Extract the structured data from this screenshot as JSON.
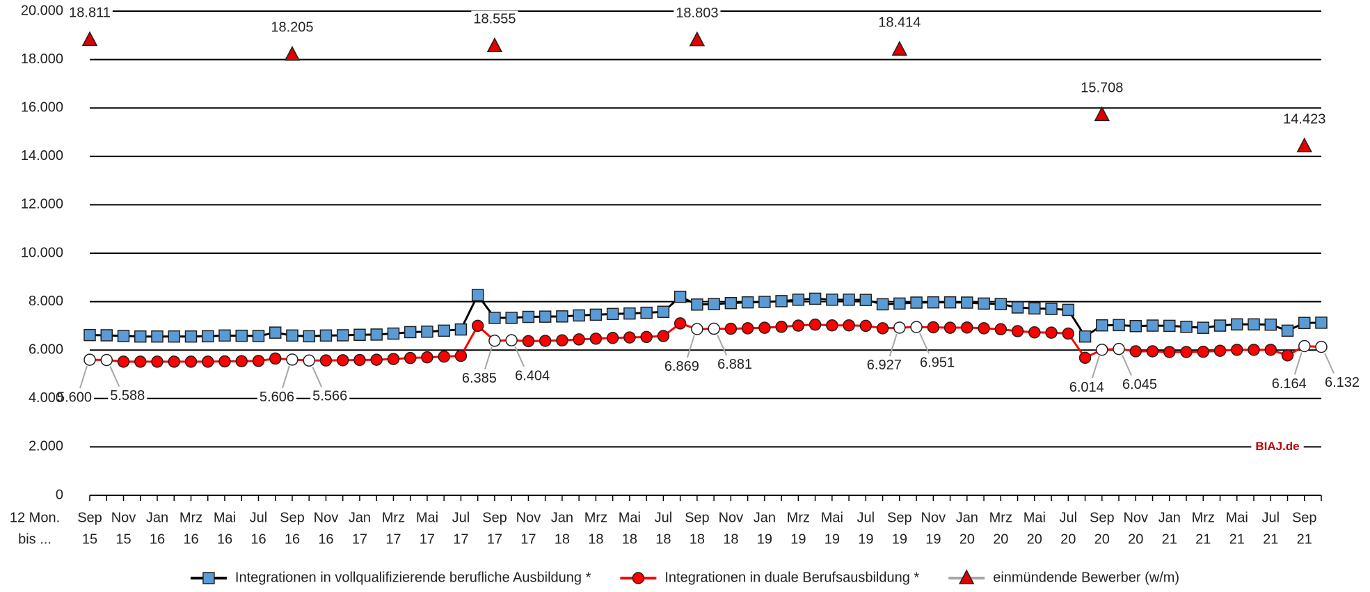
{
  "chart_data": {
    "type": "line",
    "x_label": [
      "12 Mon.",
      "bis ..."
    ],
    "categories": [
      [
        "Sep",
        "15"
      ],
      null,
      [
        "Nov",
        "15"
      ],
      null,
      [
        "Jan",
        "16"
      ],
      null,
      [
        "Mrz",
        "16"
      ],
      null,
      [
        "Mai",
        "16"
      ],
      null,
      [
        "Jul",
        "16"
      ],
      null,
      [
        "Sep",
        "16"
      ],
      null,
      [
        "Nov",
        "16"
      ],
      null,
      [
        "Jan",
        "17"
      ],
      null,
      [
        "Mrz",
        "17"
      ],
      null,
      [
        "Mai",
        "17"
      ],
      null,
      [
        "Jul",
        "17"
      ],
      null,
      [
        "Sep",
        "17"
      ],
      null,
      [
        "Nov",
        "17"
      ],
      null,
      [
        "Jan",
        "18"
      ],
      null,
      [
        "Mrz",
        "18"
      ],
      null,
      [
        "Mai",
        "18"
      ],
      null,
      [
        "Jul",
        "18"
      ],
      null,
      [
        "Sep",
        "18"
      ],
      null,
      [
        "Nov",
        "18"
      ],
      null,
      [
        "Jan",
        "19"
      ],
      null,
      [
        "Mrz",
        "19"
      ],
      null,
      [
        "Mai",
        "19"
      ],
      null,
      [
        "Jul",
        "19"
      ],
      null,
      [
        "Sep",
        "19"
      ],
      null,
      [
        "Nov",
        "19"
      ],
      null,
      [
        "Jan",
        "20"
      ],
      null,
      [
        "Mrz",
        "20"
      ],
      null,
      [
        "Mai",
        "20"
      ],
      null,
      [
        "Jul",
        "20"
      ],
      null,
      [
        "Sep",
        "20"
      ],
      null,
      [
        "Nov",
        "20"
      ],
      null,
      [
        "Jan",
        "21"
      ],
      null,
      [
        "Mrz",
        "21"
      ],
      null,
      [
        "Mai",
        "21"
      ],
      null,
      [
        "Jul",
        "21"
      ],
      null,
      [
        "Sep",
        "21"
      ],
      null
    ],
    "series": [
      {
        "name": "Integrationen in vollqualifizierende berufliche Ausbildung *",
        "color": "#5b9bd5",
        "line_color": "#000000",
        "marker": "square",
        "show_line": true,
        "values": [
          6620,
          6610,
          6580,
          6560,
          6560,
          6560,
          6560,
          6570,
          6600,
          6590,
          6580,
          6720,
          6600,
          6570,
          6600,
          6610,
          6630,
          6640,
          6680,
          6740,
          6760,
          6800,
          6850,
          8270,
          7330,
          7330,
          7370,
          7380,
          7390,
          7430,
          7460,
          7490,
          7510,
          7540,
          7580,
          8200,
          7880,
          7900,
          7940,
          7970,
          7990,
          8020,
          8080,
          8120,
          8080,
          8080,
          8070,
          7890,
          7920,
          7960,
          7970,
          7970,
          7960,
          7920,
          7900,
          7760,
          7720,
          7700,
          7660,
          6560,
          7020,
          7030,
          6990,
          7010,
          7000,
          6960,
          6920,
          7010,
          7060,
          7060,
          7050,
          6800,
          7120,
          7130
        ]
      },
      {
        "name": "Integrationen in duale Berufsausbildung *",
        "color": "#ff0000",
        "line_color": "#ff0000",
        "marker": "circle",
        "show_line": true,
        "highlight_fill": "#ffffff",
        "values": [
          5600,
          5588,
          5520,
          5520,
          5520,
          5520,
          5520,
          5520,
          5530,
          5540,
          5550,
          5650,
          5606,
          5566,
          5570,
          5580,
          5590,
          5600,
          5630,
          5670,
          5700,
          5730,
          5760,
          7000,
          6385,
          6404,
          6370,
          6380,
          6400,
          6440,
          6470,
          6500,
          6520,
          6540,
          6580,
          7100,
          6869,
          6881,
          6880,
          6900,
          6920,
          6960,
          7010,
          7050,
          7020,
          7020,
          7000,
          6900,
          6927,
          6951,
          6940,
          6920,
          6930,
          6900,
          6860,
          6780,
          6730,
          6720,
          6680,
          5680,
          6014,
          6045,
          5950,
          5950,
          5920,
          5920,
          5930,
          5970,
          6010,
          6010,
          6010,
          5780,
          6164,
          6132
        ],
        "value_labels": [
          "5.600",
          "5.588",
          null,
          null,
          null,
          null,
          null,
          null,
          null,
          null,
          null,
          null,
          "5.606",
          "5.566",
          null,
          null,
          null,
          null,
          null,
          null,
          null,
          null,
          null,
          null,
          "6.385",
          "6.404",
          null,
          null,
          null,
          null,
          null,
          null,
          null,
          null,
          null,
          null,
          "6.869",
          "6.881",
          null,
          null,
          null,
          null,
          null,
          null,
          null,
          null,
          null,
          null,
          "6.927",
          "6.951",
          null,
          null,
          null,
          null,
          null,
          null,
          null,
          null,
          null,
          null,
          "6.014",
          "6.045",
          null,
          null,
          null,
          null,
          null,
          null,
          null,
          null,
          null,
          null,
          "6.164",
          "6.132"
        ]
      },
      {
        "name": "einmündende Bewerber (w/m)",
        "color": "#e00000",
        "line_color": "#a6a6a6",
        "marker": "triangle",
        "show_line": false,
        "values": [
          18811,
          null,
          null,
          null,
          null,
          null,
          null,
          null,
          null,
          null,
          null,
          null,
          18205,
          null,
          null,
          null,
          null,
          null,
          null,
          null,
          null,
          null,
          null,
          null,
          18555,
          null,
          null,
          null,
          null,
          null,
          null,
          null,
          null,
          null,
          null,
          null,
          18803,
          null,
          null,
          null,
          null,
          null,
          null,
          null,
          null,
          null,
          null,
          null,
          18414,
          null,
          null,
          null,
          null,
          null,
          null,
          null,
          null,
          null,
          null,
          null,
          15708,
          null,
          null,
          null,
          null,
          null,
          null,
          null,
          null,
          null,
          null,
          null,
          14423,
          null
        ],
        "value_labels": [
          "18.811",
          null,
          null,
          null,
          null,
          null,
          null,
          null,
          null,
          null,
          null,
          null,
          "18.205",
          null,
          null,
          null,
          null,
          null,
          null,
          null,
          null,
          null,
          null,
          null,
          "18.555",
          null,
          null,
          null,
          null,
          null,
          null,
          null,
          null,
          null,
          null,
          null,
          "18.803",
          null,
          null,
          null,
          null,
          null,
          null,
          null,
          null,
          null,
          null,
          null,
          "18.414",
          null,
          null,
          null,
          null,
          null,
          null,
          null,
          null,
          null,
          null,
          null,
          "15.708",
          null,
          null,
          null,
          null,
          null,
          null,
          null,
          null,
          null,
          null,
          null,
          "14.423",
          null
        ]
      }
    ],
    "ylim": [
      0,
      20000
    ],
    "yticks": [
      0,
      {
        "value": 2000,
        "label": "2.000"
      },
      {
        "value": 4000,
        "label": "4.000"
      },
      {
        "value": 6000,
        "label": "6.000"
      },
      {
        "value": 8000,
        "label": "8.000"
      },
      {
        "value": 10000,
        "label": "10.000"
      },
      {
        "value": 12000,
        "label": "12.000"
      },
      {
        "value": 14000,
        "label": "14.000"
      },
      {
        "value": 16000,
        "label": "16.000"
      },
      {
        "value": 18000,
        "label": "18.000"
      },
      {
        "value": 20000,
        "label": "20.000"
      }
    ],
    "grid": true,
    "legend": "bottom",
    "annotation": {
      "text": "BIAJ.de",
      "color": "#c00000"
    }
  }
}
